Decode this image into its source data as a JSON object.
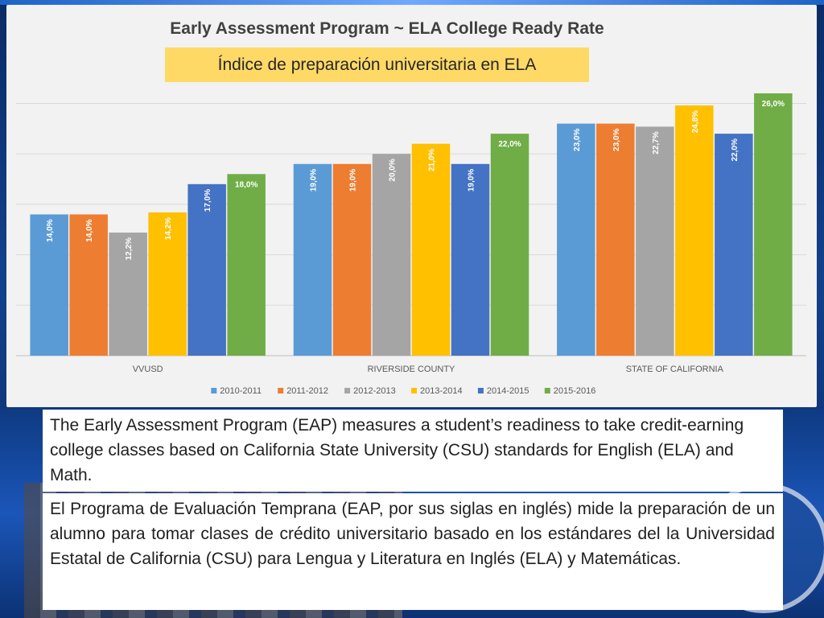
{
  "chart_data": {
    "type": "bar",
    "title": "Early Assessment Program ~ ELA College Ready Rate",
    "subtitle": "Índice de preparación universitaria en ELA",
    "categories": [
      "VVUSD",
      "RIVERSIDE COUNTY",
      "STATE OF CALIFORNIA"
    ],
    "series": [
      {
        "name": "2010-2011",
        "color": "#5b9bd5",
        "values": [
          14.0,
          19.0,
          23.0
        ],
        "labels": [
          "14,0%",
          "19,0%",
          "23,0%"
        ]
      },
      {
        "name": "2011-2012",
        "color": "#ed7d31",
        "values": [
          14.0,
          19.0,
          23.0
        ],
        "labels": [
          "14,0%",
          "19,0%",
          "23,0%"
        ]
      },
      {
        "name": "2012-2013",
        "color": "#a5a5a5",
        "values": [
          12.2,
          20.0,
          22.7
        ],
        "labels": [
          "12,2%",
          "20,0%",
          "22,7%"
        ]
      },
      {
        "name": "2013-2014",
        "color": "#ffc000",
        "values": [
          14.2,
          21.0,
          24.8
        ],
        "labels": [
          "14,2%",
          "21,0%",
          "24,8%"
        ]
      },
      {
        "name": "2014-2015",
        "color": "#4472c4",
        "values": [
          17.0,
          19.0,
          22.0
        ],
        "labels": [
          "17,0%",
          "19,0%",
          "22,0%"
        ]
      },
      {
        "name": "2015-2016",
        "color": "#70ad47",
        "values": [
          18.0,
          22.0,
          26.0
        ],
        "labels": [
          "18,0%",
          "22,0%",
          "26,0%"
        ]
      }
    ],
    "ylim": [
      0,
      26
    ],
    "grid": true,
    "legend_position": "bottom",
    "label_rotation_note": "vertical labels on all bars except 2015-2016"
  },
  "text_en": "The Early Assessment Program (EAP) measures a student’s readiness to take credit-earning college classes based on California State University (CSU) standards for English (ELA) and Math.",
  "text_es": "El Programa de Evaluación Temprana (EAP, por sus siglas en inglés) mide la preparación de un alumno para tomar clases de crédito universitario basado en los estándares del la Universidad Estatal de California (CSU) para Lengua y Literatura en Inglés (ELA) y Matemáticas."
}
